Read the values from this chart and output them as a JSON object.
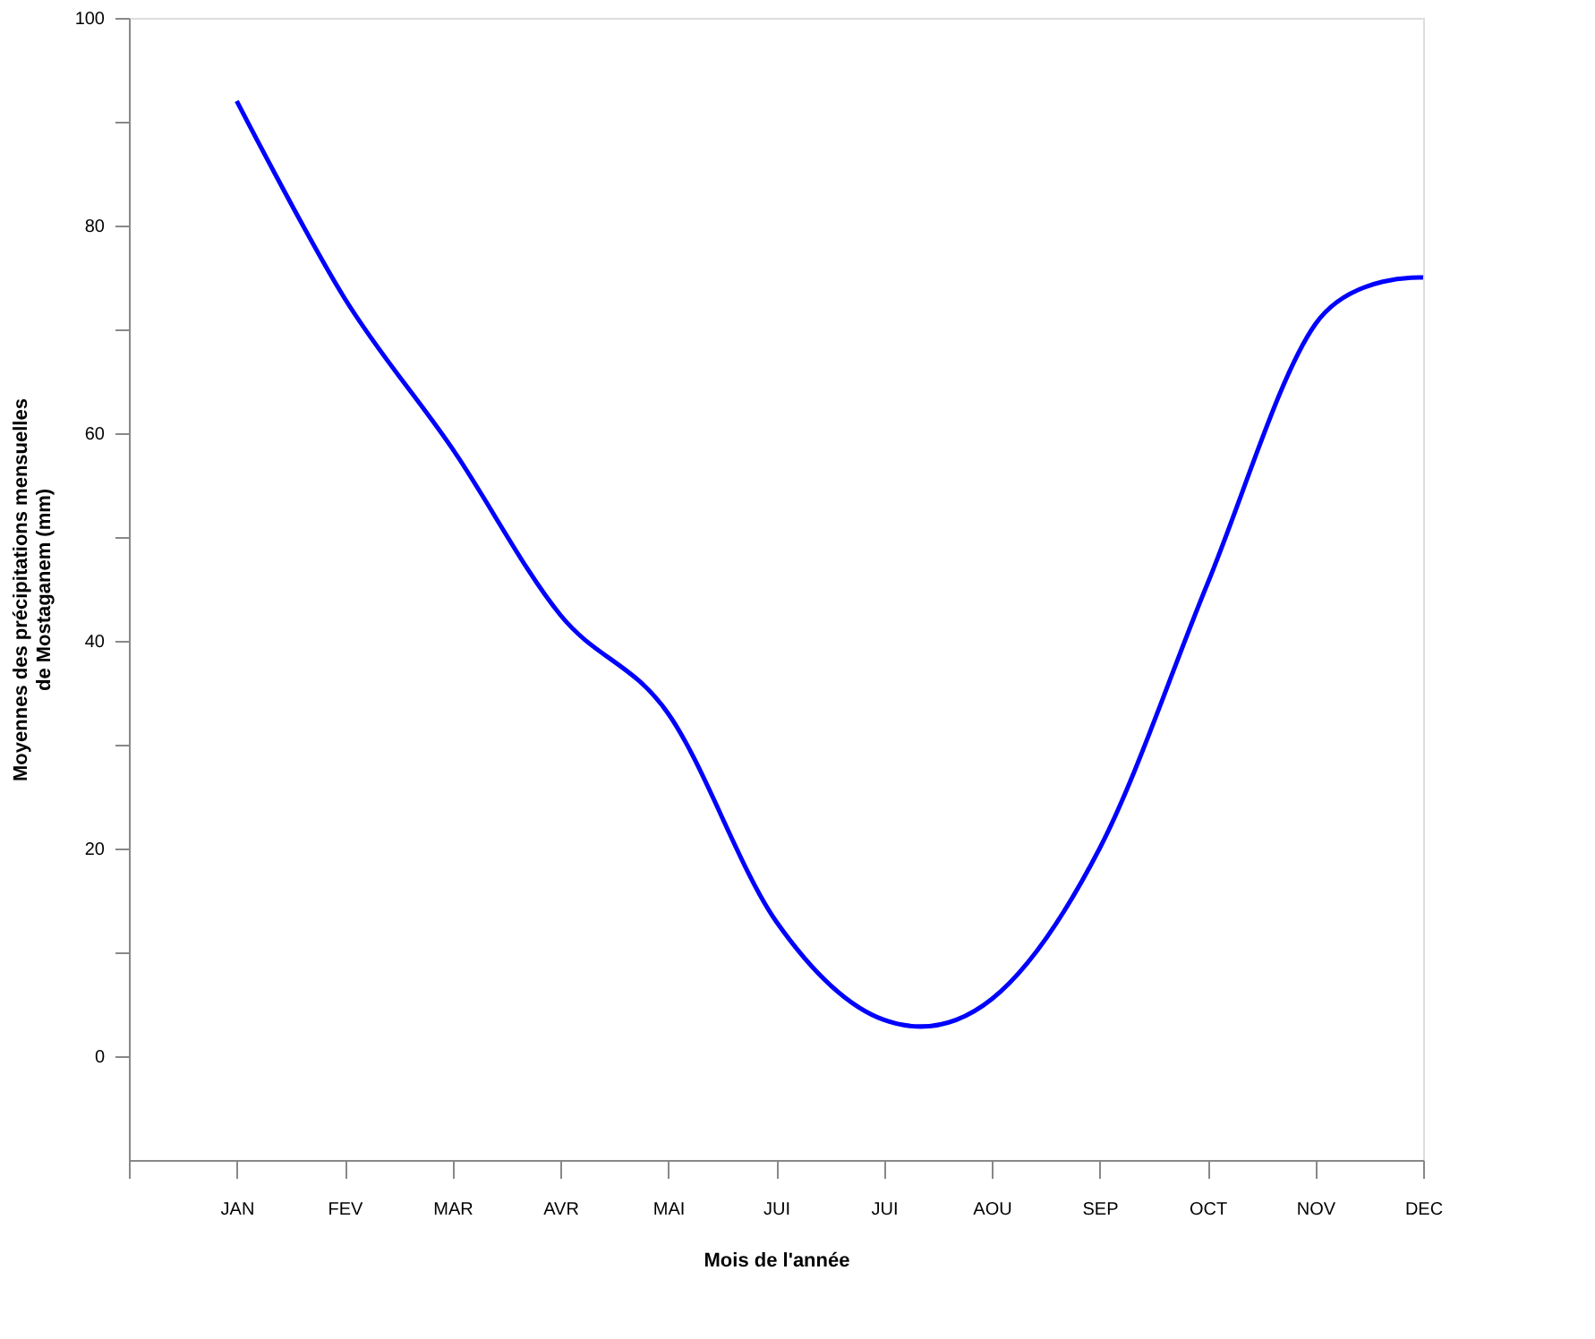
{
  "chart_data": {
    "type": "line",
    "xlabel": "Mois de l'année",
    "ylabel": "Moyennes des précipitations mensuelles\nde Mostaganem (mm)",
    "categories": [
      null,
      "JAN",
      "FEV",
      "MAR",
      "AVR",
      "MAI",
      "JUI",
      "JUI",
      "AOU",
      "SEP",
      "OCT",
      "NOV",
      "DEC"
    ],
    "series": [
      {
        "color": "#0000ff",
        "values": [
          null,
          92,
          73,
          58.5,
          42.5,
          33,
          13,
          3.5,
          5.5,
          20,
          45.5,
          70.5,
          75
        ]
      }
    ],
    "ylim": [
      -10,
      100
    ],
    "yticks": [
      0,
      {
        "value": 10,
        "label": null
      },
      20,
      {
        "value": 30,
        "label": null
      },
      40,
      {
        "value": 50,
        "label": null
      },
      60,
      {
        "value": 70,
        "label": null
      },
      80,
      {
        "value": 90,
        "label": null
      },
      100
    ],
    "grid": false,
    "legend": false,
    "marker": "none",
    "line_style": "solid"
  }
}
